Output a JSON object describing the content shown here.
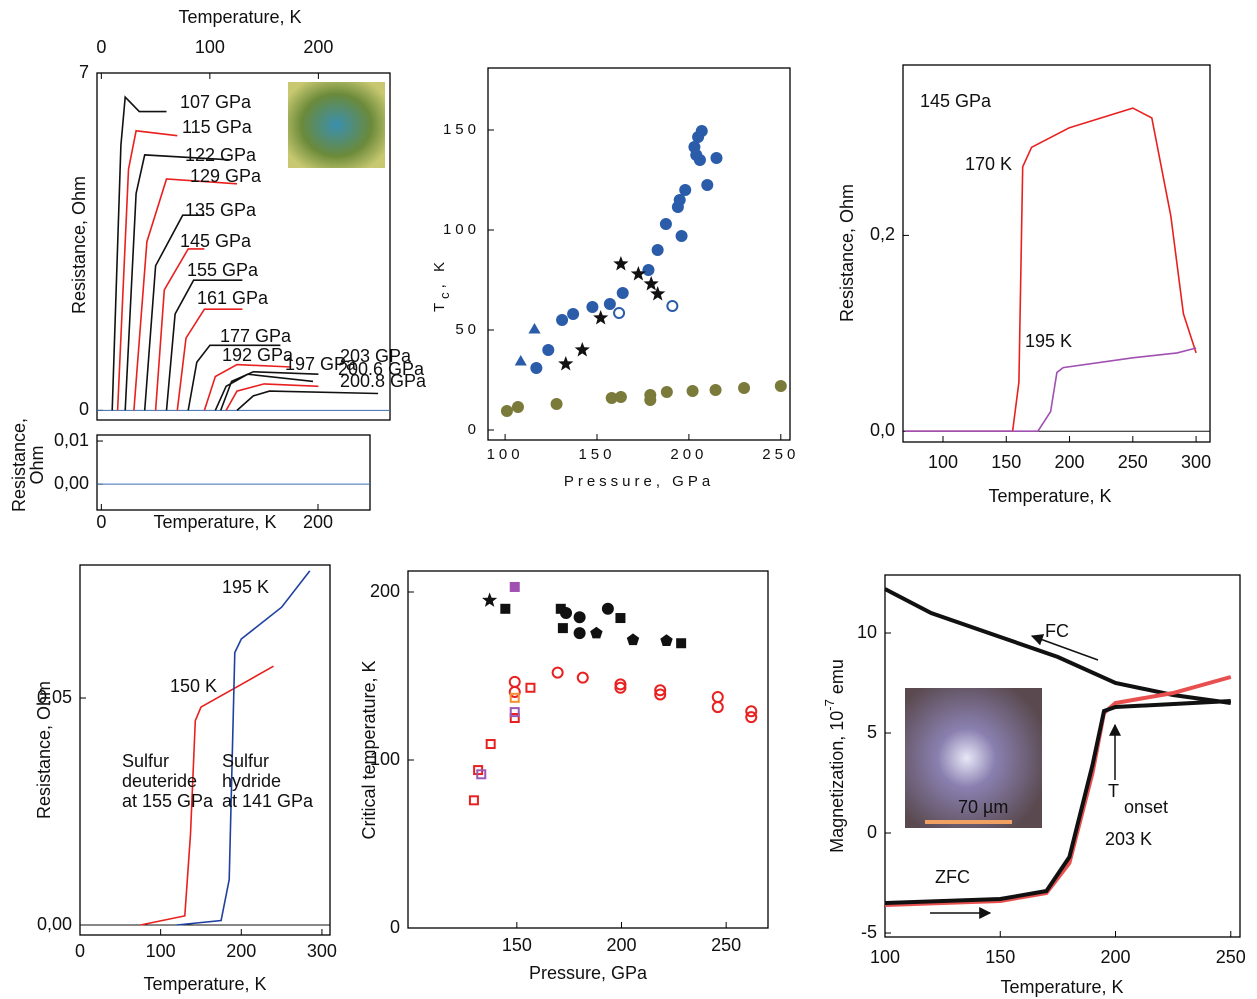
{
  "chart_data": [
    {
      "type": "line",
      "xlabel": "Temperature, K",
      "ylabel": "Resistance, Ohm",
      "xaxis": "top",
      "xlim": [
        -4,
        266
      ],
      "xticks": [
        0,
        100,
        200
      ],
      "ylim": [
        -0.2,
        7
      ],
      "yticks": [
        0,
        7
      ],
      "zero_line": "#3a6fb0",
      "series": [
        {
          "name": "107 GPa",
          "color": "#111111",
          "x": [
            10,
            18,
            22,
            35,
            60
          ],
          "values": [
            0,
            5.5,
            6.5,
            6.2,
            6.2
          ]
        },
        {
          "name": "115 GPa",
          "color": "#e8201f",
          "x": [
            15,
            25,
            32,
            70
          ],
          "values": [
            0,
            5,
            5.8,
            5.7
          ]
        },
        {
          "name": "122 GPa",
          "color": "#111111",
          "x": [
            22,
            32,
            40,
            118
          ],
          "values": [
            0,
            4.5,
            5.3,
            5.2
          ]
        },
        {
          "name": "129 GPa",
          "color": "#e8201f",
          "x": [
            30,
            42,
            60,
            125
          ],
          "values": [
            0,
            3.5,
            4.8,
            4.7
          ]
        },
        {
          "name": "135 GPa",
          "color": "#111111",
          "x": [
            40,
            50,
            75,
            95
          ],
          "values": [
            0,
            3,
            4.05,
            4.05
          ]
        },
        {
          "name": "145 GPa",
          "color": "#e8201f",
          "x": [
            50,
            58,
            80,
            95
          ],
          "values": [
            0,
            2.5,
            3.35,
            3.35
          ]
        },
        {
          "name": "155 GPa",
          "color": "#111111",
          "x": [
            60,
            68,
            85,
            130
          ],
          "values": [
            0,
            2,
            2.7,
            2.7
          ]
        },
        {
          "name": "161 GPa",
          "color": "#e8201f",
          "x": [
            70,
            78,
            95,
            130
          ],
          "values": [
            0,
            1.5,
            2.1,
            2.1
          ]
        },
        {
          "name": "177 GPa",
          "color": "#111111",
          "x": [
            80,
            88,
            100,
            165
          ],
          "values": [
            0,
            1,
            1.35,
            1.35
          ]
        },
        {
          "name": "192 GPa",
          "color": "#e8201f",
          "x": [
            95,
            105,
            125,
            175
          ],
          "values": [
            0,
            0.7,
            0.95,
            0.9
          ]
        },
        {
          "name": "197 GPa",
          "color": "#111111",
          "x": [
            105,
            115,
            135,
            195
          ],
          "values": [
            0,
            0.5,
            0.75,
            0.6
          ]
        },
        {
          "name": "203 GPa",
          "color": "#111111",
          "x": [
            110,
            120,
            140,
            200
          ],
          "values": [
            0,
            0.6,
            0.8,
            0.75
          ]
        },
        {
          "name": "200.6 GPa",
          "color": "#e8201f",
          "x": [
            115,
            125,
            150,
            200
          ],
          "values": [
            0,
            0.4,
            0.55,
            0.5
          ]
        },
        {
          "name": "200.8 GPa",
          "color": "#111111",
          "x": [
            125,
            140,
            155,
            255
          ],
          "values": [
            0,
            0.3,
            0.4,
            0.35
          ]
        }
      ]
    },
    {
      "type": "line",
      "xlabel": "Temperature, K",
      "ylabel": [
        "Resistance,",
        "Ohm"
      ],
      "xlim": [
        -4,
        248
      ],
      "xticks": [
        0,
        200
      ],
      "ylim": [
        -0.006,
        0.0114
      ],
      "yticks": [
        {
          "value": 0,
          "label": "0,00"
        },
        {
          "value": 0.01,
          "label": "0,01"
        }
      ],
      "zero_line": "#3a6fb0"
    },
    {
      "type": "scatter",
      "xlabel": "Pressure, GPa",
      "ylabel": "T",
      "ylabel_subscript": "c",
      "ylabel_suffix": ", K",
      "xlim": [
        90.7,
        255
      ],
      "xticks": [
        100,
        150,
        200,
        250
      ],
      "ylim": [
        -5,
        181
      ],
      "yticks": [
        0,
        50,
        100,
        150
      ],
      "series": [
        {
          "marker": "circle",
          "color": "#2a5caa",
          "x": [
            117,
            123.5,
            131,
            137,
            147.5,
            157,
            164,
            178,
            183,
            187.5,
            194,
            196,
            198,
            203,
            205,
            207,
            206,
            210,
            215,
            195,
            204
          ],
          "values": [
            31,
            40,
            55,
            58,
            61.5,
            63,
            68.5,
            80,
            90,
            103,
            111.5,
            97,
            120,
            141.5,
            146.5,
            149.5,
            135,
            122.5,
            136,
            115,
            137.5
          ]
        },
        {
          "marker": "triangle",
          "color": "#2a5caa",
          "x": [
            116,
            108.5
          ],
          "values": [
            50,
            34
          ]
        },
        {
          "marker": "star",
          "color": "#111111",
          "x": [
            133,
            142,
            152,
            163,
            172.5,
            179.5,
            183
          ],
          "values": [
            33,
            40,
            56,
            83,
            78,
            73,
            68
          ]
        },
        {
          "marker": "open-circle",
          "color": "#2a5caa",
          "x": [
            162,
            191
          ],
          "values": [
            58.5,
            62
          ]
        },
        {
          "marker": "circle",
          "color": "#7a7a3a",
          "x": [
            101,
            107,
            128,
            158,
            163,
            179,
            179,
            188,
            202,
            214.5,
            230,
            250
          ],
          "values": [
            9.5,
            11.5,
            13,
            16,
            16.5,
            17.5,
            15,
            19,
            19.5,
            20,
            21,
            22
          ]
        }
      ]
    },
    {
      "type": "line",
      "xlabel": "Temperature, K",
      "ylabel": "Resistance, Ohm",
      "xlim": [
        68.4,
        311
      ],
      "xticks": [
        100,
        150,
        200,
        250,
        300
      ],
      "ylim": [
        -0.011,
        0.374
      ],
      "yticks": [
        {
          "value": 0,
          "label": "0,0"
        },
        {
          "value": 0.2,
          "label": "0,2"
        }
      ],
      "zero_line": "#111111",
      "annotations": [
        {
          "text": "145 GPa",
          "color": "#111111"
        }
      ],
      "series": [
        {
          "name": "170 K",
          "color": "#e8201f",
          "x": [
            70,
            155,
            160,
            163,
            170,
            200,
            250,
            265,
            280,
            290,
            300
          ],
          "values": [
            0,
            0,
            0.05,
            0.27,
            0.29,
            0.31,
            0.33,
            0.32,
            0.22,
            0.12,
            0.08
          ]
        },
        {
          "name": "195 K",
          "color": "#a050b0",
          "label_color": "#f39030",
          "x": [
            70,
            175,
            185,
            190,
            195,
            250,
            285,
            300
          ],
          "values": [
            0,
            0,
            0.02,
            0.06,
            0.065,
            0.075,
            0.08,
            0.085
          ]
        }
      ]
    },
    {
      "type": "line",
      "xlabel": "Temperature, K",
      "ylabel": "Resistance, Ohm",
      "xlim": [
        0,
        310
      ],
      "xticks": [
        0,
        100,
        200,
        300
      ],
      "ylim": [
        -0.0022,
        0.0793
      ],
      "yticks": [
        {
          "value": 0,
          "label": "0,00"
        },
        {
          "value": 0.05,
          "label": "0,05"
        }
      ],
      "zero_line": "#111111",
      "annotations": [
        {
          "text": [
            "Sulfur",
            "deuteride",
            "at 155 GPa"
          ],
          "color": "#e8201f"
        },
        {
          "text": [
            "Sulfur",
            "hydride",
            "at 141 GPa"
          ],
          "color": "#2040a0"
        }
      ],
      "series": [
        {
          "name": "150 K",
          "color": "#e8201f",
          "x": [
            75,
            130,
            137,
            143,
            150,
            200,
            240
          ],
          "values": [
            0,
            0.002,
            0.02,
            0.045,
            0.048,
            0.053,
            0.057
          ]
        },
        {
          "name": "195 K",
          "color": "#2040a0",
          "x": [
            120,
            175,
            185,
            192,
            200,
            250,
            285
          ],
          "values": [
            0,
            0.001,
            0.01,
            0.06,
            0.063,
            0.07,
            0.078
          ]
        }
      ]
    },
    {
      "type": "scatter",
      "xlabel": "Pressure, GPa",
      "ylabel": "Critical temperature, K",
      "xlim": [
        98,
        270
      ],
      "xticks": [
        150,
        200,
        250
      ],
      "ylim": [
        0,
        212.5
      ],
      "yticks": [
        0,
        100,
        200
      ],
      "series": [
        {
          "marker": "star",
          "color": "#111111",
          "x": [
            137
          ],
          "values": [
            195
          ]
        },
        {
          "marker": "square",
          "color": "#111111",
          "x": [
            144.5,
            171,
            172,
            199.5,
            228.5
          ],
          "values": [
            190,
            190,
            178.5,
            184.5,
            169.5
          ]
        },
        {
          "marker": "circle",
          "color": "#111111",
          "x": [
            173.5,
            180,
            180,
            193.5
          ],
          "values": [
            187.5,
            185,
            175.5,
            190
          ]
        },
        {
          "marker": "pentagon",
          "color": "#111111",
          "x": [
            188,
            205.5,
            221.5
          ],
          "values": [
            175.5,
            171.5,
            171
          ]
        },
        {
          "marker": "square",
          "color": "#a050b0",
          "x": [
            149
          ],
          "values": [
            203
          ]
        },
        {
          "marker": "open-circle",
          "color": "#e8201f",
          "x": [
            149,
            149,
            169.5,
            181.5,
            199.5,
            199.5,
            218.5,
            218.5,
            246,
            246,
            262,
            262
          ],
          "values": [
            146.5,
            140.5,
            152,
            149,
            145,
            143,
            141.5,
            139,
            137.5,
            131.5,
            129,
            125.5
          ]
        },
        {
          "marker": "open-square",
          "color": "#e8201f",
          "x": [
            129.5,
            131.5,
            137.5,
            149,
            156.5
          ],
          "values": [
            76,
            94,
            109.5,
            125,
            143
          ]
        },
        {
          "marker": "open-square",
          "color": "#f39030",
          "x": [
            149
          ],
          "values": [
            137
          ]
        },
        {
          "marker": "open-square",
          "color": "#9b59b6",
          "x": [
            133,
            149
          ],
          "values": [
            91.5,
            128.5
          ]
        }
      ]
    },
    {
      "type": "line",
      "xlabel": "Temperature, K",
      "ylabel": "Magnetization, 10",
      "ylabel_superscript": "-7",
      "ylabel_suffix": " emu",
      "xlim": [
        100,
        254
      ],
      "xticks": [
        100,
        150,
        200,
        250
      ],
      "ylim": [
        -5.2,
        12.9
      ],
      "yticks": [
        -5,
        0,
        5,
        10
      ],
      "annotations": [
        {
          "text": "FC",
          "color": "#111111"
        },
        {
          "text": "ZFC",
          "color": "#111111"
        },
        {
          "text": "T",
          "color": "#111111"
        },
        {
          "text": "onset",
          "color": "#111111"
        },
        {
          "text": "203 K",
          "color": "#111111"
        },
        {
          "text": "70 µm",
          "color": "#f3e0c0"
        }
      ],
      "series": [
        {
          "color": "#111111",
          "x": [
            100,
            120,
            150,
            175,
            200,
            225,
            250
          ],
          "values": [
            12.2,
            11,
            9.8,
            8.8,
            7.5,
            6.9,
            6.5
          ]
        },
        {
          "color": "#e8504f",
          "x": [
            100,
            150,
            170,
            180,
            190,
            195,
            200,
            225,
            250
          ],
          "values": [
            -3.6,
            -3.4,
            -3,
            -1.5,
            3,
            6,
            6.5,
            7,
            7.8
          ]
        },
        {
          "color": "#111111",
          "x": [
            100,
            150,
            170,
            180,
            190,
            195,
            200,
            250
          ],
          "values": [
            -3.5,
            -3.3,
            -2.9,
            -1.2,
            3.4,
            6.1,
            6.3,
            6.6
          ]
        }
      ]
    }
  ]
}
